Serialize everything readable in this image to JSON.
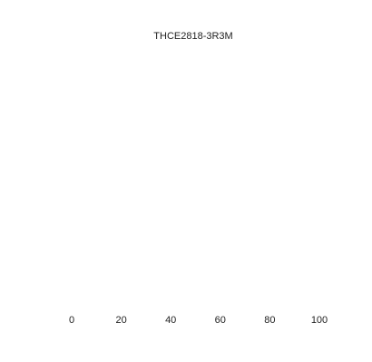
{
  "chart_data": {
    "type": "bar",
    "title": "THCE2818-3R3M",
    "xlabel": "",
    "ylabel": "",
    "x_ticks": [
      0,
      20,
      40,
      60,
      80,
      100
    ],
    "xlim": [
      0,
      100
    ],
    "categories": [],
    "values": [],
    "grid": false,
    "legend": "none"
  }
}
